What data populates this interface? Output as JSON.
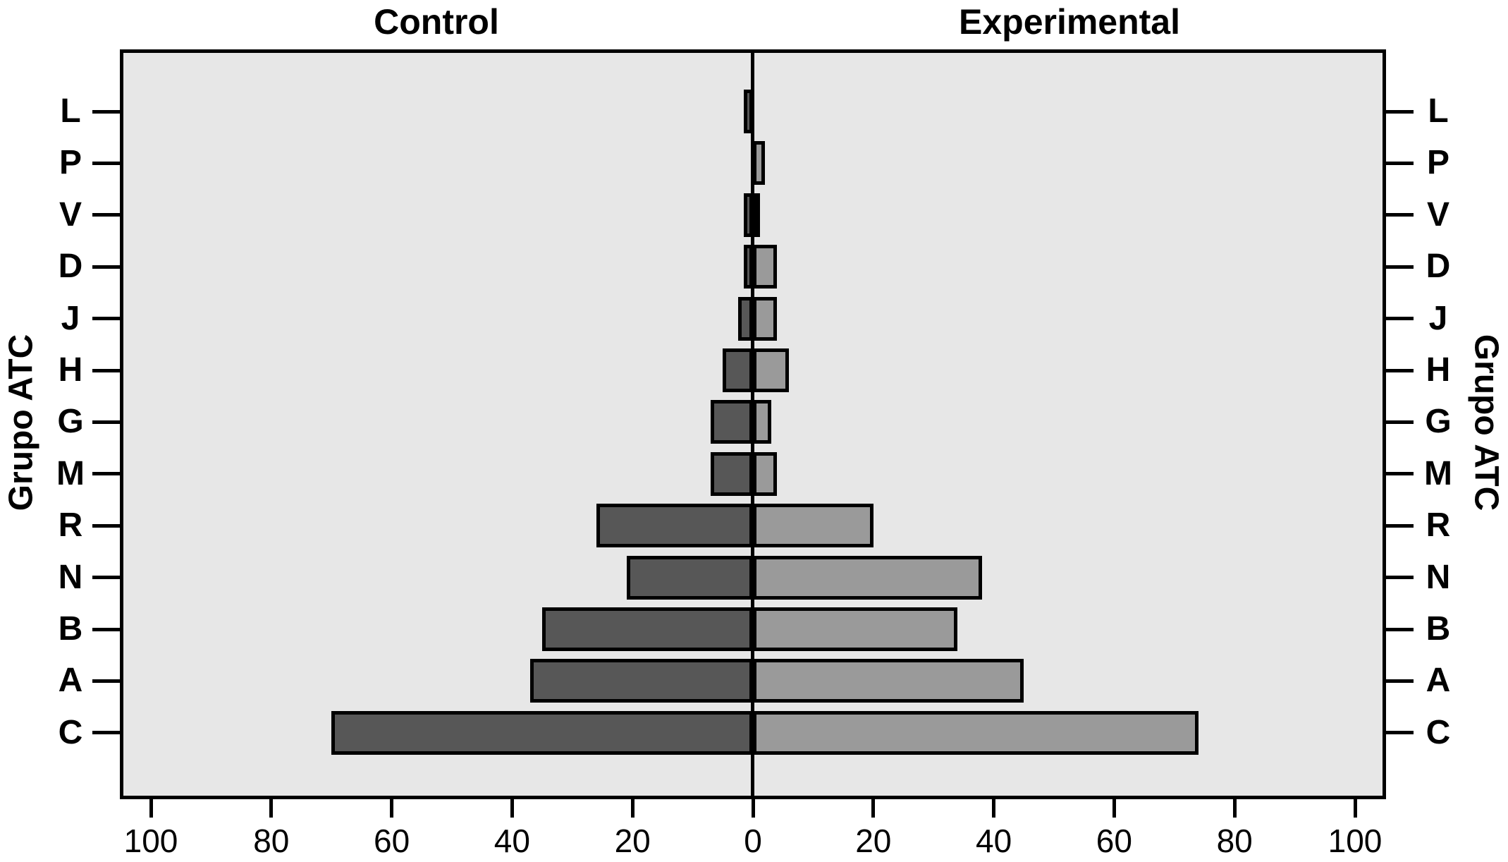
{
  "chart_data": {
    "type": "bar",
    "variant": "population_pyramid_butterfly",
    "title_left": "Control",
    "title_right": "Experimental",
    "ylabel_left": "Grupo ATC",
    "ylabel_right": "Grupo ATC",
    "categories_top_to_bottom": [
      "L",
      "P",
      "V",
      "D",
      "J",
      "H",
      "G",
      "M",
      "R",
      "N",
      "B",
      "A",
      "C"
    ],
    "series": [
      {
        "name": "Control",
        "side": "left",
        "color": "#575757",
        "values": [
          1.5,
          0,
          1.5,
          1.5,
          2.5,
          5,
          7,
          7,
          26,
          21,
          35,
          37,
          70
        ]
      },
      {
        "name": "Experimental",
        "side": "right",
        "color": "#9A9A9A",
        "values": [
          0,
          2,
          1,
          4,
          4,
          6,
          3,
          4,
          20,
          38,
          34,
          45,
          74
        ]
      }
    ],
    "x_axis": {
      "tick_values": [
        0,
        20,
        40,
        60,
        80,
        100
      ],
      "mirrored": true,
      "max_each_side": 100
    },
    "plot_background": "#E7E7E7",
    "bar_border_color": "#000000",
    "axis_color": "#000000",
    "grid": false,
    "legend": "none"
  }
}
